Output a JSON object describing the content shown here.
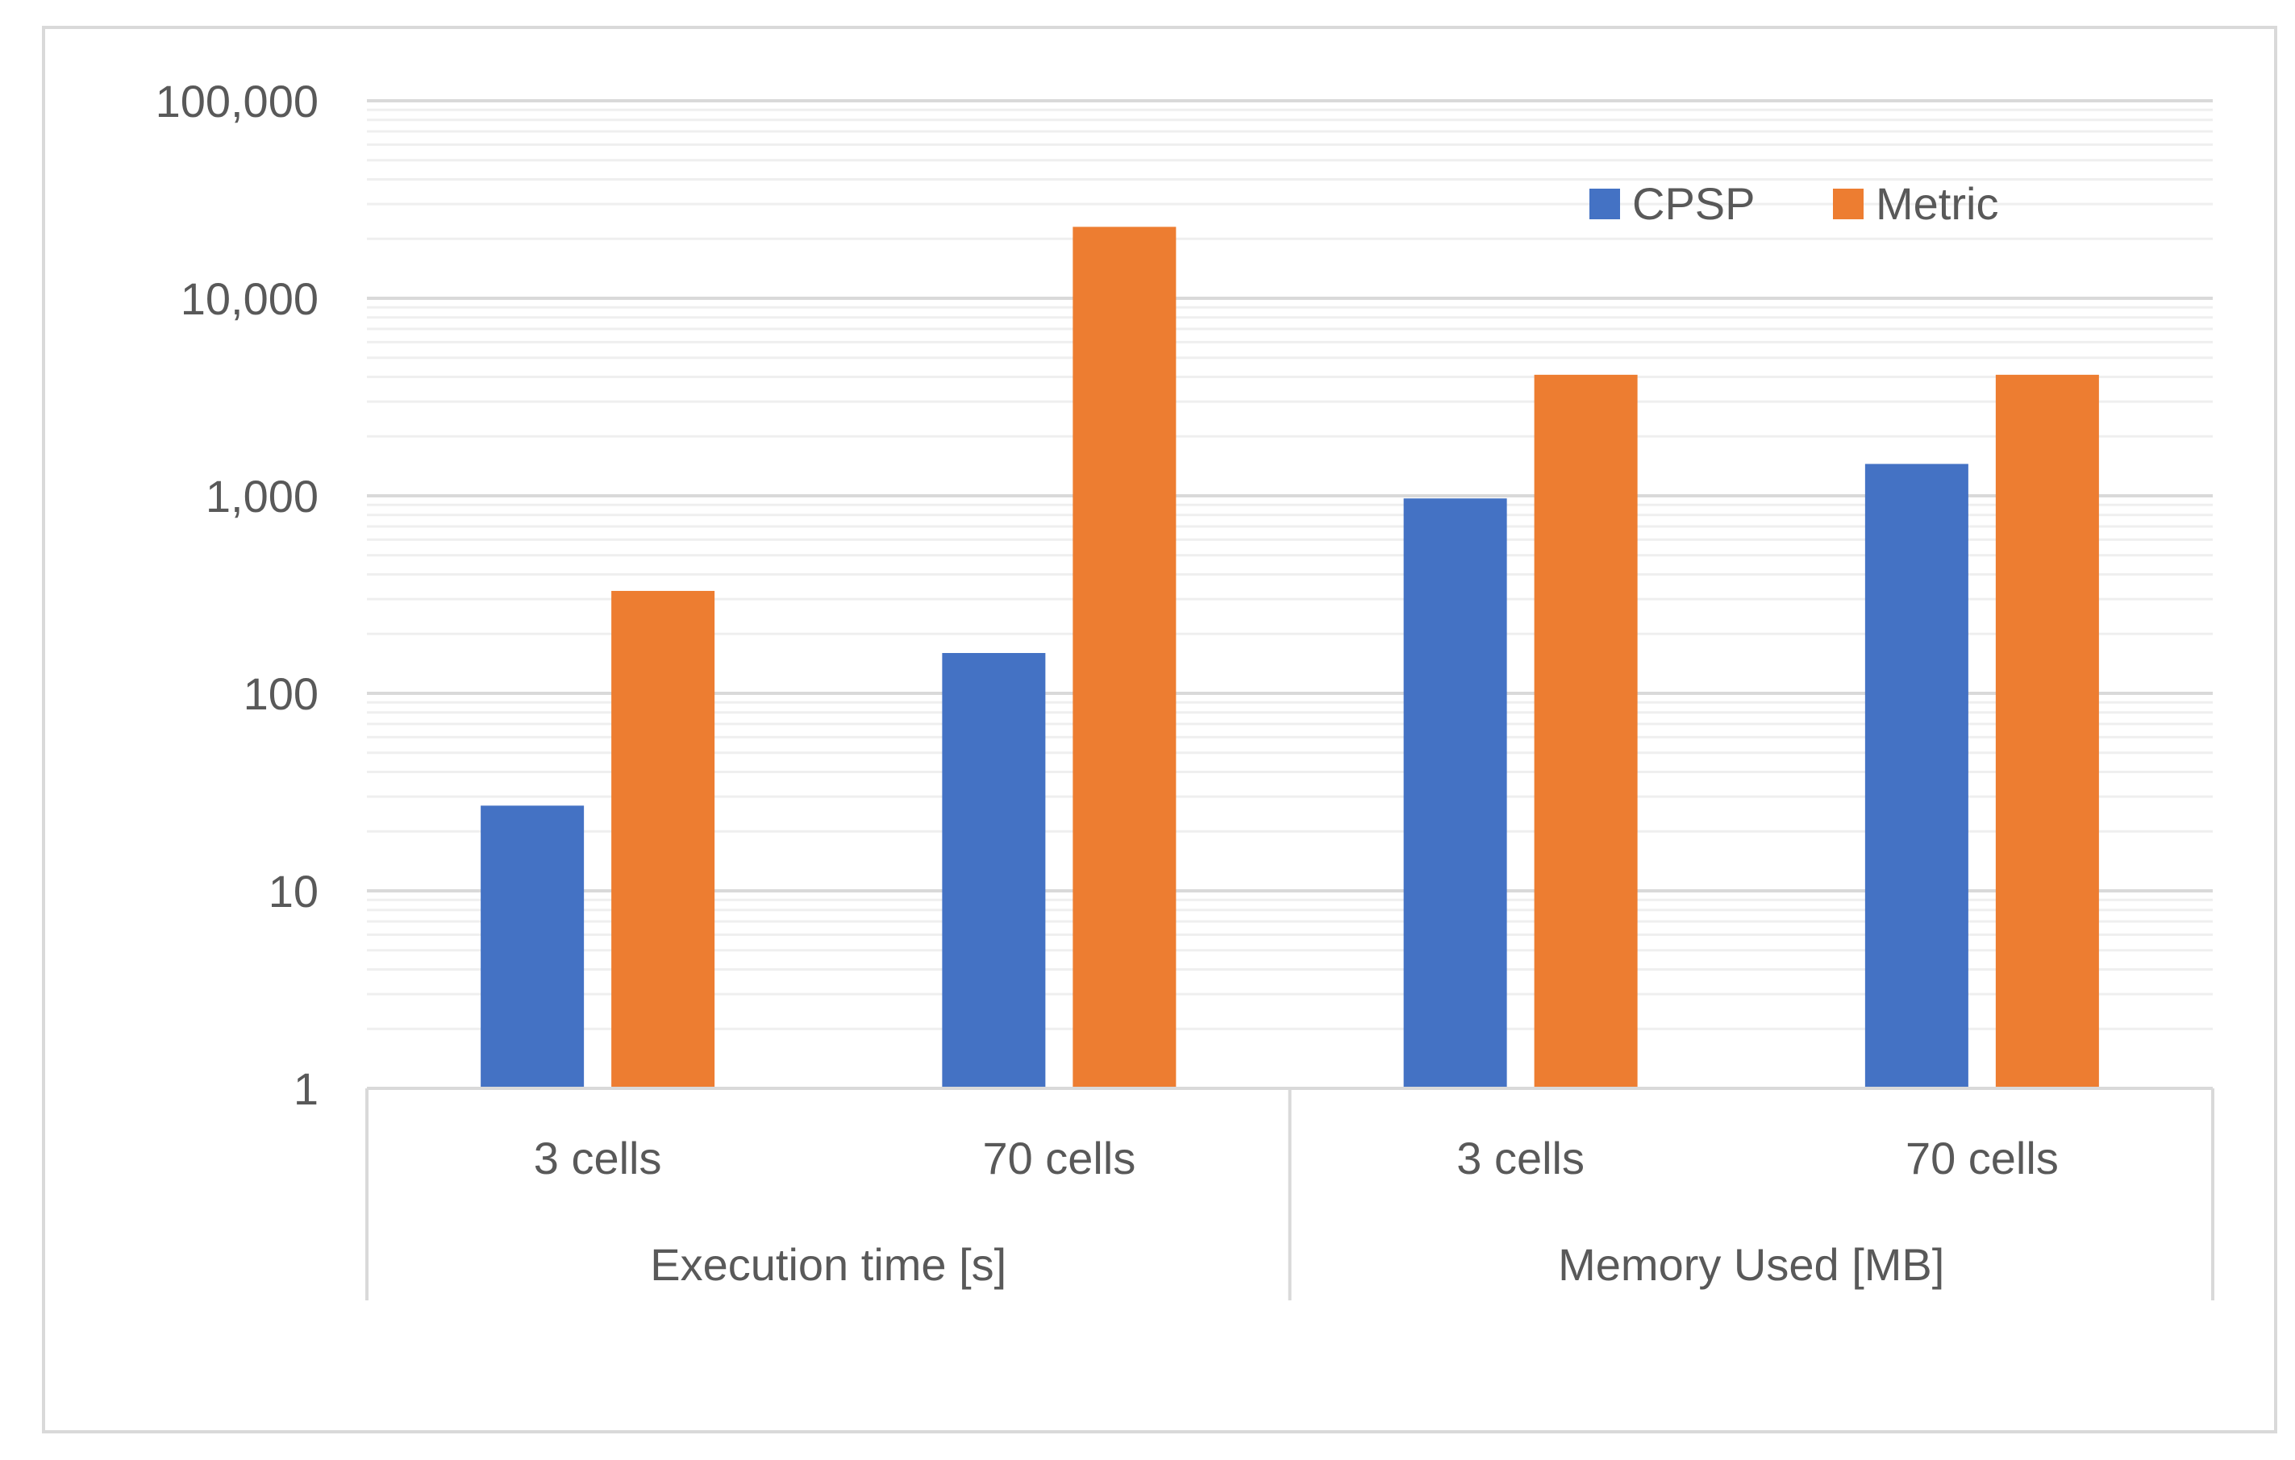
{
  "chart_data": {
    "type": "bar",
    "scale": "log10",
    "ylim": [
      1,
      100000
    ],
    "yticks": [
      1,
      10,
      100,
      1000,
      10000,
      100000
    ],
    "ytick_labels": [
      "1",
      "10",
      "100",
      "1,000",
      "10,000",
      "100,000"
    ],
    "groups": [
      {
        "label": "Execution time [s]",
        "categories": [
          "3 cells",
          "70 cells"
        ]
      },
      {
        "label": "Memory Used [MB]",
        "categories": [
          "3 cells",
          "70 cells"
        ]
      }
    ],
    "categories": [
      "3 cells",
      "70 cells",
      "3 cells",
      "70 cells"
    ],
    "series": [
      {
        "name": "CPSP",
        "color": "#4472C4",
        "values": [
          27,
          160,
          970,
          1450
        ]
      },
      {
        "name": "Metric",
        "color": "#ED7D31",
        "values": [
          330,
          23000,
          4100,
          4100
        ]
      }
    ],
    "legend_position": "top-right",
    "grid": true,
    "title": "",
    "xlabel": "",
    "ylabel": ""
  }
}
